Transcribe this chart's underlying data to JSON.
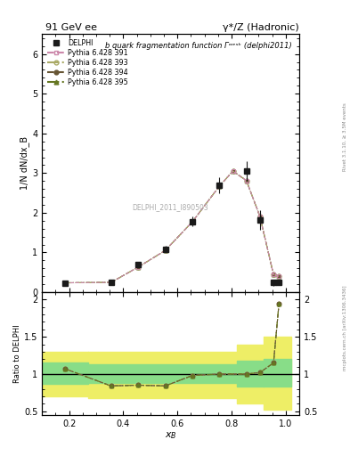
{
  "title_left": "91 GeV ee",
  "title_right": "γ*/Z (Hadronic)",
  "main_title": "b quark fragmentation function Γʷᵉˢᵏ (delphi2011)",
  "ylabel_main": "1/N dN/dx_B",
  "ylabel_ratio": "Ratio to DELPHI",
  "xlabel": "x_B",
  "watermark": "DELPHI_2011_I890503",
  "right_label1": "Rivet 3.1.10, ≥ 3.5M events",
  "right_label2": "mcplots.cern.ch [arXiv:1306.3436]",
  "delphi_x": [
    0.185,
    0.355,
    0.455,
    0.555,
    0.655,
    0.755,
    0.855,
    0.905,
    0.955,
    0.975
  ],
  "delphi_y": [
    0.22,
    0.245,
    0.69,
    1.08,
    1.78,
    2.7,
    3.05,
    1.82,
    0.24,
    0.24
  ],
  "delphi_yerr": [
    0.04,
    0.04,
    0.07,
    0.08,
    0.12,
    0.2,
    0.25,
    0.25,
    0.08,
    0.04
  ],
  "pythia_x": [
    0.185,
    0.355,
    0.455,
    0.555,
    0.655,
    0.755,
    0.805,
    0.855,
    0.905,
    0.955,
    0.975
  ],
  "pythia_y": [
    0.235,
    0.245,
    0.63,
    1.05,
    1.77,
    2.67,
    3.05,
    2.81,
    1.9,
    0.44,
    0.4
  ],
  "ratio_x": [
    0.185,
    0.355,
    0.455,
    0.555,
    0.655,
    0.755,
    0.855,
    0.905,
    0.955,
    0.975
  ],
  "ratio_y": [
    1.07,
    0.84,
    0.85,
    0.84,
    0.98,
    1.0,
    1.0,
    1.02,
    1.15,
    1.94
  ],
  "band_yellow_edges": [
    [
      0.1,
      0.27
    ],
    [
      0.27,
      0.82
    ],
    [
      0.82,
      0.92
    ],
    [
      0.92,
      1.02
    ]
  ],
  "band_yellow_lo": [
    0.7,
    0.68,
    0.6,
    0.52
  ],
  "band_yellow_hi": [
    1.3,
    1.3,
    1.4,
    1.5
  ],
  "band_green_edges": [
    [
      0.1,
      0.27
    ],
    [
      0.27,
      0.82
    ],
    [
      0.82,
      0.92
    ],
    [
      0.92,
      1.02
    ]
  ],
  "band_green_lo": [
    0.87,
    0.88,
    0.83,
    0.83
  ],
  "band_green_hi": [
    1.15,
    1.13,
    1.18,
    1.2
  ],
  "color_delphi": "#1a1a1a",
  "color_p391": "#cc88aa",
  "color_p393": "#aaaa66",
  "color_p394": "#665533",
  "color_p395": "#667722",
  "color_yellow": "#eeee66",
  "color_green": "#88dd88",
  "pythia_labels": [
    "Pythia 6.428 391",
    "Pythia 6.428 393",
    "Pythia 6.428 394",
    "Pythia 6.428 395"
  ],
  "ylim_main": [
    0.0,
    6.5
  ],
  "ylim_ratio": [
    0.45,
    2.1
  ],
  "xlim": [
    0.1,
    1.05
  ],
  "yticks_main": [
    0,
    1,
    2,
    3,
    4,
    5,
    6
  ],
  "yticks_ratio": [
    0.5,
    1.0,
    1.5,
    2.0
  ]
}
